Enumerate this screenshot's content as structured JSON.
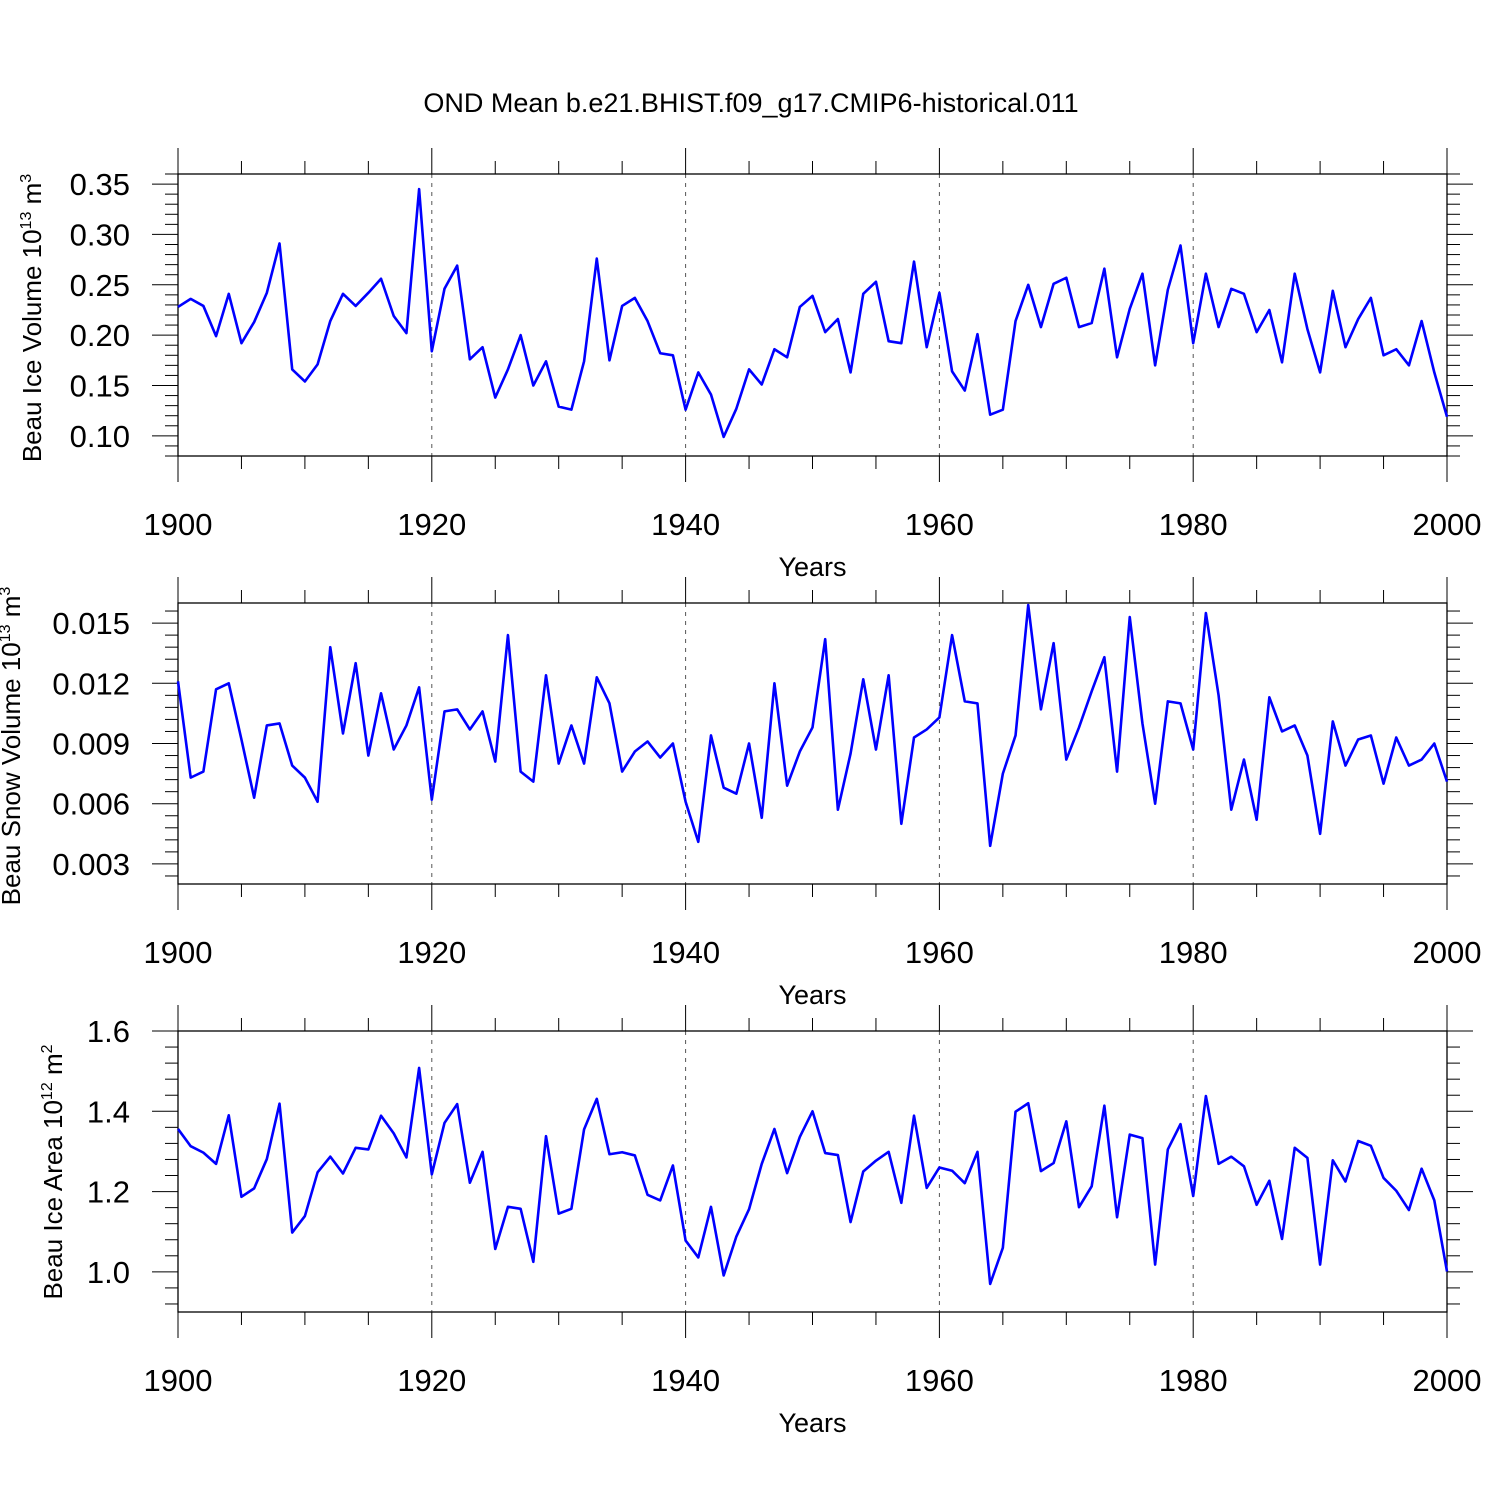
{
  "title": "OND Mean b.e21.BHIST.f09_g17.CMIP6-historical.011",
  "chart_data": [
    {
      "type": "line",
      "xlabel": "Years",
      "ylabel": "Beau Ice Volume 10",
      "ylabel_exp": "13",
      "ylabel_unit": " m",
      "ylabel_unit_exp": "3",
      "xlim": [
        1900,
        2000
      ],
      "ylim": [
        0.08,
        0.36
      ],
      "yticks": [
        0.1,
        0.15,
        0.2,
        0.25,
        0.3,
        0.35
      ],
      "ytick_labels": [
        "0.10",
        "0.15",
        "0.20",
        "0.25",
        "0.30",
        "0.35"
      ],
      "xticks": [
        1900,
        1920,
        1940,
        1960,
        1980,
        2000
      ],
      "xtick_labels": [
        "1900",
        "1920",
        "1940",
        "1960",
        "1980",
        "2000"
      ],
      "color": "#0000ff",
      "series": [
        {
          "name": "Beau Ice Volume",
          "values": [
            0.228,
            0.236,
            0.229,
            0.199,
            0.241,
            0.192,
            0.213,
            0.242,
            0.291,
            0.166,
            0.154,
            0.171,
            0.214,
            0.241,
            0.229,
            0.242,
            0.256,
            0.219,
            0.202,
            0.345,
            0.184,
            0.246,
            0.269,
            0.176,
            0.188,
            0.138,
            0.166,
            0.2,
            0.15,
            0.174,
            0.129,
            0.126,
            0.174,
            0.276,
            0.175,
            0.229,
            0.237,
            0.214,
            0.182,
            0.18,
            0.126,
            0.163,
            0.141,
            0.099,
            0.127,
            0.166,
            0.151,
            0.186,
            0.178,
            0.228,
            0.239,
            0.203,
            0.216,
            0.163,
            0.241,
            0.253,
            0.194,
            0.192,
            0.273,
            0.188,
            0.242,
            0.164,
            0.145,
            0.201,
            0.121,
            0.126,
            0.214,
            0.25,
            0.208,
            0.251,
            0.257,
            0.208,
            0.212,
            0.266,
            0.178,
            0.226,
            0.261,
            0.17,
            0.245,
            0.289,
            0.192,
            0.261,
            0.208,
            0.246,
            0.241,
            0.203,
            0.225,
            0.173,
            0.261,
            0.206,
            0.163,
            0.244,
            0.188,
            0.216,
            0.237,
            0.18,
            0.186,
            0.17,
            0.214,
            0.163,
            0.119
          ]
        }
      ]
    },
    {
      "type": "line",
      "xlabel": "Years",
      "ylabel": "Beau Snow Volume 10",
      "ylabel_exp": "13",
      "ylabel_unit": " m",
      "ylabel_unit_exp": "3",
      "xlim": [
        1900,
        2000
      ],
      "ylim": [
        0.002,
        0.016
      ],
      "yticks": [
        0.003,
        0.006,
        0.009,
        0.012,
        0.015
      ],
      "ytick_labels": [
        "0.003",
        "0.006",
        "0.009",
        "0.012",
        "0.015"
      ],
      "xticks": [
        1900,
        1920,
        1940,
        1960,
        1980,
        2000
      ],
      "xtick_labels": [
        "1900",
        "1920",
        "1940",
        "1960",
        "1980",
        "2000"
      ],
      "color": "#0000ff",
      "series": [
        {
          "name": "Beau Snow Volume",
          "values": [
            0.0121,
            0.0073,
            0.0076,
            0.0117,
            0.012,
            0.0092,
            0.0063,
            0.0099,
            0.01,
            0.0079,
            0.0073,
            0.0061,
            0.0138,
            0.0095,
            0.013,
            0.0084,
            0.0115,
            0.0087,
            0.0099,
            0.0118,
            0.0062,
            0.0106,
            0.0107,
            0.0097,
            0.0106,
            0.0081,
            0.0144,
            0.0076,
            0.0071,
            0.0124,
            0.008,
            0.0099,
            0.008,
            0.0123,
            0.011,
            0.0076,
            0.0086,
            0.0091,
            0.0083,
            0.009,
            0.0061,
            0.0041,
            0.0094,
            0.0068,
            0.0065,
            0.009,
            0.0053,
            0.012,
            0.0069,
            0.0086,
            0.0098,
            0.0142,
            0.0057,
            0.0085,
            0.0122,
            0.0087,
            0.0124,
            0.005,
            0.0093,
            0.0097,
            0.0103,
            0.0144,
            0.0111,
            0.011,
            0.0039,
            0.0075,
            0.0094,
            0.0159,
            0.0107,
            0.014,
            0.0082,
            0.0098,
            0.0116,
            0.0133,
            0.0076,
            0.0153,
            0.01,
            0.006,
            0.0111,
            0.011,
            0.0087,
            0.0155,
            0.0114,
            0.0057,
            0.0082,
            0.0052,
            0.0113,
            0.0096,
            0.0099,
            0.0084,
            0.0045,
            0.0101,
            0.0079,
            0.0092,
            0.0094,
            0.007,
            0.0093,
            0.0079,
            0.0082,
            0.009,
            0.0071
          ]
        }
      ]
    },
    {
      "type": "line",
      "xlabel": "Years",
      "ylabel": "Beau Ice Area 10",
      "ylabel_exp": "12",
      "ylabel_unit": " m",
      "ylabel_unit_exp": "2",
      "xlim": [
        1900,
        2000
      ],
      "ylim": [
        0.9,
        1.6
      ],
      "yticks": [
        1.0,
        1.2,
        1.4,
        1.6
      ],
      "ytick_labels": [
        "1.0",
        "1.2",
        "1.4",
        "1.6"
      ],
      "xticks": [
        1900,
        1920,
        1940,
        1960,
        1980,
        2000
      ],
      "xtick_labels": [
        "1900",
        "1920",
        "1940",
        "1960",
        "1980",
        "2000"
      ],
      "color": "#0000ff",
      "series": [
        {
          "name": "Beau Ice Area",
          "values": [
            1.356,
            1.313,
            1.297,
            1.269,
            1.39,
            1.187,
            1.208,
            1.281,
            1.419,
            1.098,
            1.139,
            1.248,
            1.287,
            1.245,
            1.309,
            1.305,
            1.389,
            1.345,
            1.285,
            1.508,
            1.243,
            1.371,
            1.418,
            1.222,
            1.299,
            1.057,
            1.162,
            1.157,
            1.025,
            1.338,
            1.145,
            1.157,
            1.355,
            1.431,
            1.293,
            1.298,
            1.29,
            1.192,
            1.178,
            1.265,
            1.078,
            1.036,
            1.162,
            0.991,
            1.088,
            1.156,
            1.269,
            1.356,
            1.246,
            1.336,
            1.4,
            1.296,
            1.291,
            1.124,
            1.25,
            1.277,
            1.299,
            1.172,
            1.389,
            1.209,
            1.26,
            1.252,
            1.221,
            1.299,
            0.97,
            1.06,
            1.399,
            1.42,
            1.251,
            1.271,
            1.375,
            1.161,
            1.213,
            1.414,
            1.136,
            1.342,
            1.333,
            1.018,
            1.305,
            1.368,
            1.189,
            1.438,
            1.269,
            1.287,
            1.263,
            1.167,
            1.227,
            1.082,
            1.309,
            1.284,
            1.018,
            1.278,
            1.225,
            1.326,
            1.314,
            1.234,
            1.202,
            1.154,
            1.257,
            1.178,
            1.001
          ]
        }
      ]
    }
  ]
}
